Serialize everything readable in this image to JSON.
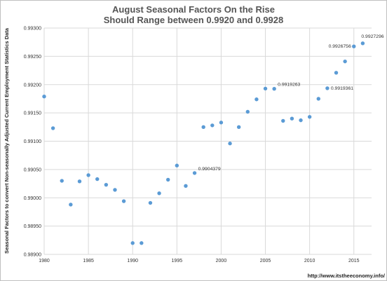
{
  "chart_data": {
    "type": "scatter",
    "title_lines": [
      "August Seasonal Factors On the Rise",
      "Should Range between 0.9920 and 0.9928"
    ],
    "xlabel": "",
    "ylabel": "Seasonal Factors to convert Non-seasonally Adjusted Current Employment Statistics Data",
    "xlim": [
      1980,
      2017
    ],
    "ylim": [
      0.989,
      0.993
    ],
    "x_ticks": [
      "1980",
      "1985",
      "1990",
      "1995",
      "2000",
      "2005",
      "2010",
      "2015"
    ],
    "y_ticks": [
      "0.98900",
      "0.98950",
      "0.99000",
      "0.99050",
      "0.99100",
      "0.99150",
      "0.99200",
      "0.99250",
      "0.99300"
    ],
    "grid": "horizontal",
    "marker_color": "#5b9bd5",
    "points": [
      {
        "x": 1980,
        "y": 0.99179
      },
      {
        "x": 1981,
        "y": 0.99123
      },
      {
        "x": 1982,
        "y": 0.9903
      },
      {
        "x": 1983,
        "y": 0.98988
      },
      {
        "x": 1984,
        "y": 0.99029
      },
      {
        "x": 1985,
        "y": 0.9904
      },
      {
        "x": 1986,
        "y": 0.99033
      },
      {
        "x": 1987,
        "y": 0.99023
      },
      {
        "x": 1988,
        "y": 0.99014
      },
      {
        "x": 1989,
        "y": 0.98994
      },
      {
        "x": 1990,
        "y": 0.9892
      },
      {
        "x": 1991,
        "y": 0.9892
      },
      {
        "x": 1992,
        "y": 0.98991
      },
      {
        "x": 1993,
        "y": 0.99008
      },
      {
        "x": 1994,
        "y": 0.99032
      },
      {
        "x": 1995,
        "y": 0.99057
      },
      {
        "x": 1996,
        "y": 0.99021
      },
      {
        "x": 1997,
        "y": 0.9904379,
        "label": "0.9904379"
      },
      {
        "x": 1998,
        "y": 0.99125
      },
      {
        "x": 1999,
        "y": 0.99128
      },
      {
        "x": 2000,
        "y": 0.99133
      },
      {
        "x": 2001,
        "y": 0.99096
      },
      {
        "x": 2002,
        "y": 0.99125
      },
      {
        "x": 2003,
        "y": 0.99152
      },
      {
        "x": 2004,
        "y": 0.99174
      },
      {
        "x": 2005,
        "y": 0.99193
      },
      {
        "x": 2006,
        "y": 0.9919263,
        "label": "0.9919263"
      },
      {
        "x": 2007,
        "y": 0.99136
      },
      {
        "x": 2008,
        "y": 0.9914
      },
      {
        "x": 2009,
        "y": 0.99137
      },
      {
        "x": 2010,
        "y": 0.99143
      },
      {
        "x": 2011,
        "y": 0.99175
      },
      {
        "x": 2012,
        "y": 0.9919361,
        "label": "0.9919361"
      },
      {
        "x": 2013,
        "y": 0.99221
      },
      {
        "x": 2014,
        "y": 0.99241
      },
      {
        "x": 2015,
        "y": 0.9926756,
        "label": "0.9926756"
      },
      {
        "x": 2016,
        "y": 0.9927296,
        "label": "0.9927296"
      }
    ]
  },
  "source_text": "http://www.itstheeconomy.info/"
}
